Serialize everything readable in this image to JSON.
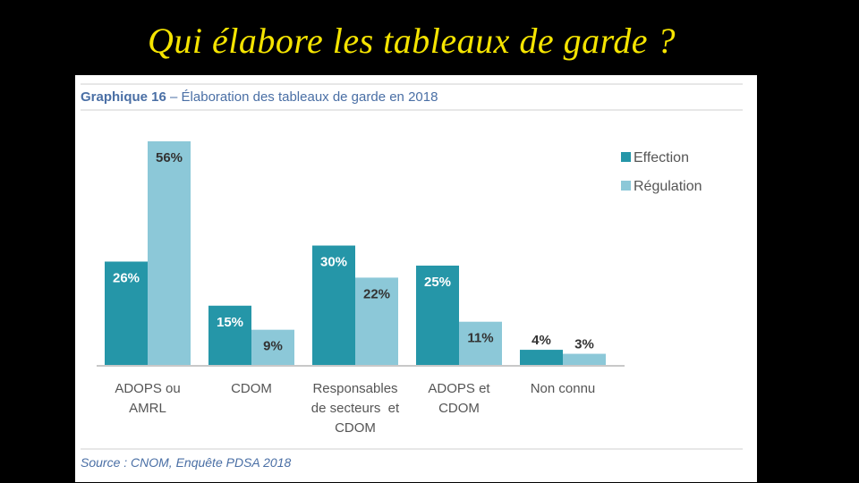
{
  "slide": {
    "title": "Qui élabore les tableaux de garde ?"
  },
  "figure": {
    "caption_label": "Graphique 16",
    "caption_separator": " – ",
    "caption_text": "Élaboration des tableaux de garde en 2018",
    "source": "Source : CNOM, Enquête PDSA 2018"
  },
  "colors": {
    "effection": "#2596a8",
    "regulation": "#8cc8d8",
    "caption_blue": "#4a6fa5",
    "label_gray": "#555555"
  },
  "chart_data": {
    "type": "bar",
    "title": "Élaboration des tableaux de garde en 2018",
    "categories": [
      [
        "ADOPS ou",
        "AMRL"
      ],
      [
        "CDOM"
      ],
      [
        "Responsables",
        "de secteurs  et",
        "CDOM"
      ],
      [
        "ADOPS et",
        "CDOM"
      ],
      [
        "Non connu"
      ]
    ],
    "series": [
      {
        "name": "Effection",
        "values": [
          26,
          15,
          30,
          25,
          4
        ],
        "labels": [
          "26%",
          "15%",
          "30%",
          "25%",
          "4%"
        ]
      },
      {
        "name": "Régulation",
        "values": [
          56,
          9,
          22,
          11,
          3
        ],
        "labels": [
          "56%",
          "9%",
          "22%",
          "11%",
          "3%"
        ]
      }
    ],
    "ylim": [
      0,
      56
    ],
    "legend_position": "top-right",
    "grid": false
  }
}
